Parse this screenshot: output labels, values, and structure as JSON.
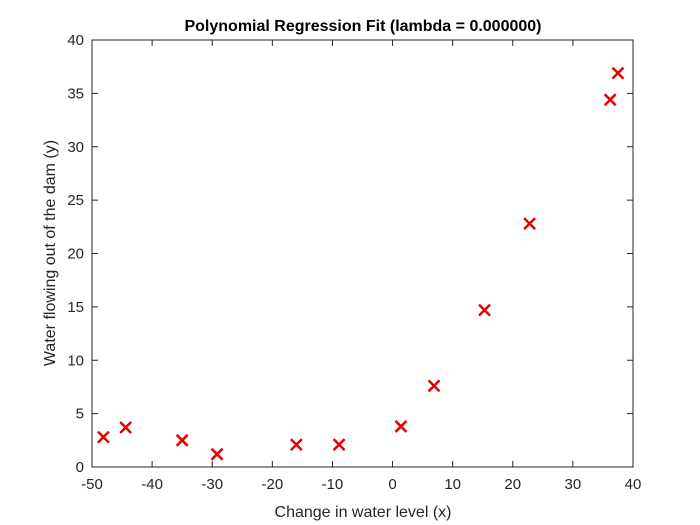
{
  "chart_data": {
    "type": "scatter",
    "title": "Polynomial Regression Fit (lambda = 0.000000)",
    "xlabel": "Change in water level (x)",
    "ylabel": "Water flowing out of the dam (y)",
    "xlim": [
      -50,
      40
    ],
    "ylim": [
      0,
      40
    ],
    "xticks": [
      -50,
      -40,
      -30,
      -20,
      -10,
      0,
      10,
      20,
      30,
      40
    ],
    "yticks": [
      0,
      5,
      10,
      15,
      20,
      25,
      30,
      35,
      40
    ],
    "grid": false,
    "marker": "x",
    "marker_color": "#e60000",
    "points": [
      {
        "x": -48.1,
        "y": 2.8
      },
      {
        "x": -44.4,
        "y": 3.7
      },
      {
        "x": -35.0,
        "y": 2.5
      },
      {
        "x": -29.2,
        "y": 1.2
      },
      {
        "x": -16.0,
        "y": 2.1
      },
      {
        "x": -8.9,
        "y": 2.1
      },
      {
        "x": 1.4,
        "y": 3.8
      },
      {
        "x": 6.9,
        "y": 7.6
      },
      {
        "x": 15.3,
        "y": 14.7
      },
      {
        "x": 22.8,
        "y": 22.8
      },
      {
        "x": 36.2,
        "y": 34.4
      },
      {
        "x": 37.5,
        "y": 36.9
      }
    ]
  }
}
